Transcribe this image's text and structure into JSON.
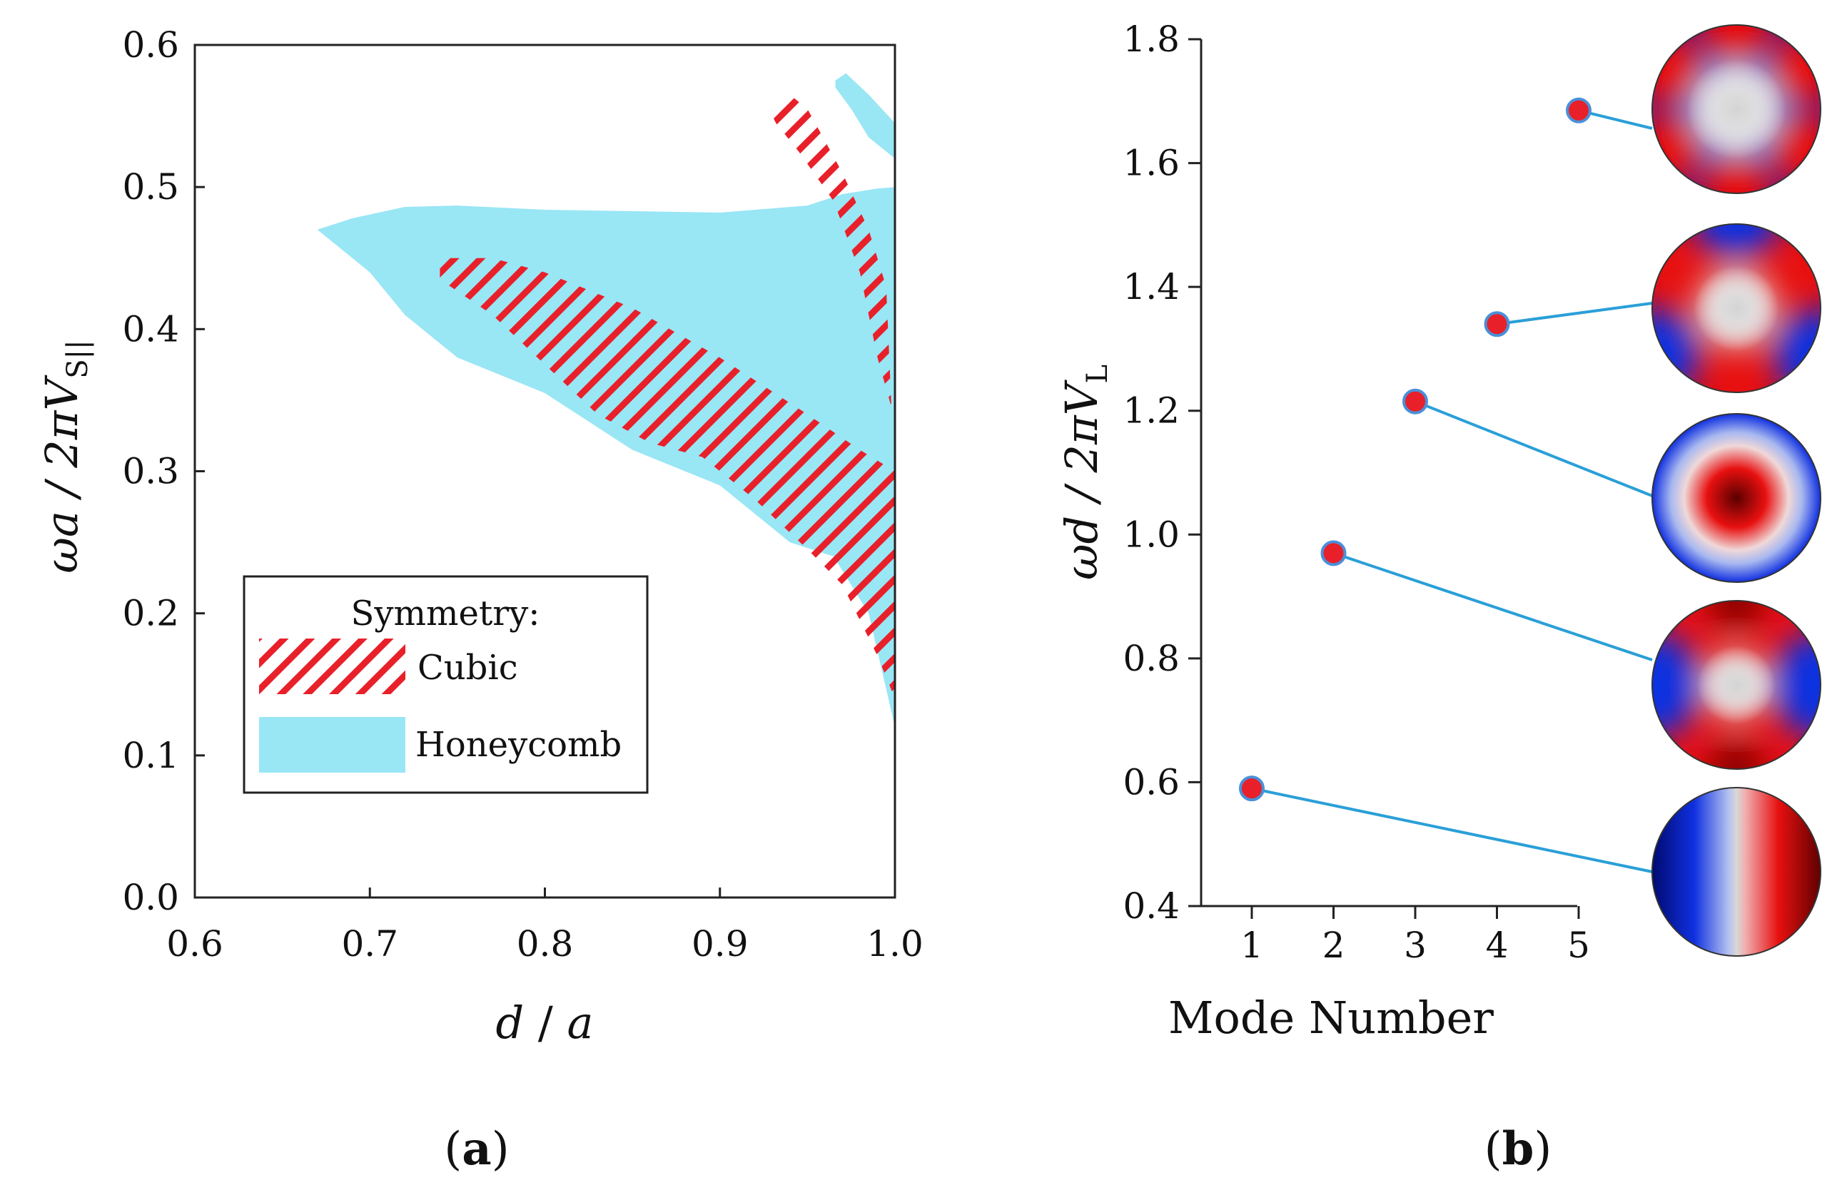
{
  "chart_data": [
    {
      "type": "area",
      "panel": "(a)",
      "panel_label": {
        "open": "(",
        "letter": "a",
        "close": ")"
      },
      "xlabel": "d / a",
      "xlabel_parts": {
        "num": "d",
        "sep": " / ",
        "den": "a"
      },
      "ylabel": "ωa / 2πV_S||",
      "ylabel_parts": {
        "main": "ωa / 2πV",
        "sub": "S||"
      },
      "xlim": [
        0.6,
        1.0
      ],
      "ylim": [
        0.0,
        0.6
      ],
      "xticks": [
        "0.6",
        "0.7",
        "0.8",
        "0.9",
        "1.0"
      ],
      "yticks": [
        "0.0",
        "0.1",
        "0.2",
        "0.3",
        "0.4",
        "0.5",
        "0.6"
      ],
      "legend": {
        "title": "Symmetry:",
        "entries": [
          "Cubic",
          "Honeycomb"
        ]
      },
      "colors": {
        "cubic": "#e8202a",
        "honeycomb": "#99e6f5"
      },
      "series": [
        {
          "name": "Honeycomb",
          "regions": [
            [
              [
                0.67,
                0.47
              ],
              [
                0.69,
                0.478
              ],
              [
                0.72,
                0.486
              ],
              [
                0.75,
                0.487
              ],
              [
                0.8,
                0.484
              ],
              [
                0.85,
                0.483
              ],
              [
                0.9,
                0.482
              ],
              [
                0.95,
                0.487
              ],
              [
                0.97,
                0.495
              ],
              [
                0.99,
                0.499
              ],
              [
                1.0,
                0.5
              ],
              [
                1.0,
                0.35
              ],
              [
                1.0,
                0.12
              ],
              [
                0.985,
                0.2
              ],
              [
                0.965,
                0.24
              ],
              [
                0.94,
                0.25
              ],
              [
                0.9,
                0.29
              ],
              [
                0.85,
                0.315
              ],
              [
                0.8,
                0.355
              ],
              [
                0.75,
                0.38
              ],
              [
                0.72,
                0.41
              ],
              [
                0.7,
                0.44
              ],
              [
                0.675,
                0.465
              ]
            ],
            [
              [
                0.966,
                0.575
              ],
              [
                0.972,
                0.58
              ],
              [
                0.985,
                0.565
              ],
              [
                1.0,
                0.545
              ],
              [
                1.0,
                0.52
              ],
              [
                0.985,
                0.535
              ],
              [
                0.975,
                0.555
              ],
              [
                0.966,
                0.57
              ]
            ]
          ]
        },
        {
          "name": "Cubic",
          "regions": [
            [
              [
                0.74,
                0.45
              ],
              [
                0.77,
                0.45
              ],
              [
                0.8,
                0.44
              ],
              [
                0.85,
                0.415
              ],
              [
                0.9,
                0.38
              ],
              [
                0.95,
                0.34
              ],
              [
                0.98,
                0.315
              ],
              [
                1.0,
                0.3
              ],
              [
                1.0,
                0.14
              ],
              [
                0.99,
                0.17
              ],
              [
                0.97,
                0.22
              ],
              [
                0.95,
                0.245
              ],
              [
                0.92,
                0.28
              ],
              [
                0.89,
                0.31
              ],
              [
                0.86,
                0.32
              ],
              [
                0.83,
                0.34
              ],
              [
                0.8,
                0.375
              ],
              [
                0.77,
                0.41
              ],
              [
                0.74,
                0.435
              ]
            ],
            [
              [
                0.93,
                0.55
              ],
              [
                0.94,
                0.565
              ],
              [
                0.95,
                0.555
              ],
              [
                0.97,
                0.51
              ],
              [
                0.985,
                0.47
              ],
              [
                0.995,
                0.43
              ],
              [
                0.998,
                0.345
              ],
              [
                0.99,
                0.38
              ],
              [
                0.98,
                0.44
              ],
              [
                0.965,
                0.49
              ],
              [
                0.945,
                0.525
              ],
              [
                0.932,
                0.545
              ]
            ]
          ]
        }
      ]
    },
    {
      "type": "scatter",
      "panel": "(b)",
      "panel_label": {
        "open": "(",
        "letter": "b",
        "close": ")"
      },
      "xlabel": "Mode Number",
      "ylabel": "ωd / 2πV_L",
      "ylabel_parts": {
        "main": "ωd / 2πV",
        "sub": "L"
      },
      "xlim": [
        0.6,
        5.2
      ],
      "ylim": [
        0.4,
        1.8
      ],
      "xticks": [
        "1",
        "2",
        "3",
        "4",
        "5"
      ],
      "yticks": [
        "0.4",
        "0.6",
        "0.8",
        "1.0",
        "1.2",
        "1.4",
        "1.6",
        "1.8"
      ],
      "x": [
        1,
        2,
        3,
        4,
        5
      ],
      "values": [
        0.59,
        0.97,
        1.215,
        1.34,
        1.685
      ],
      "colors": {
        "marker": "#e8202a",
        "marker_edge": "#4a90d9",
        "leader": "#2a9fd8"
      },
      "mode_shapes": [
        "dipole",
        "quadrupole",
        "breathing",
        "quadrupole-rotated",
        "hexapole"
      ]
    }
  ]
}
